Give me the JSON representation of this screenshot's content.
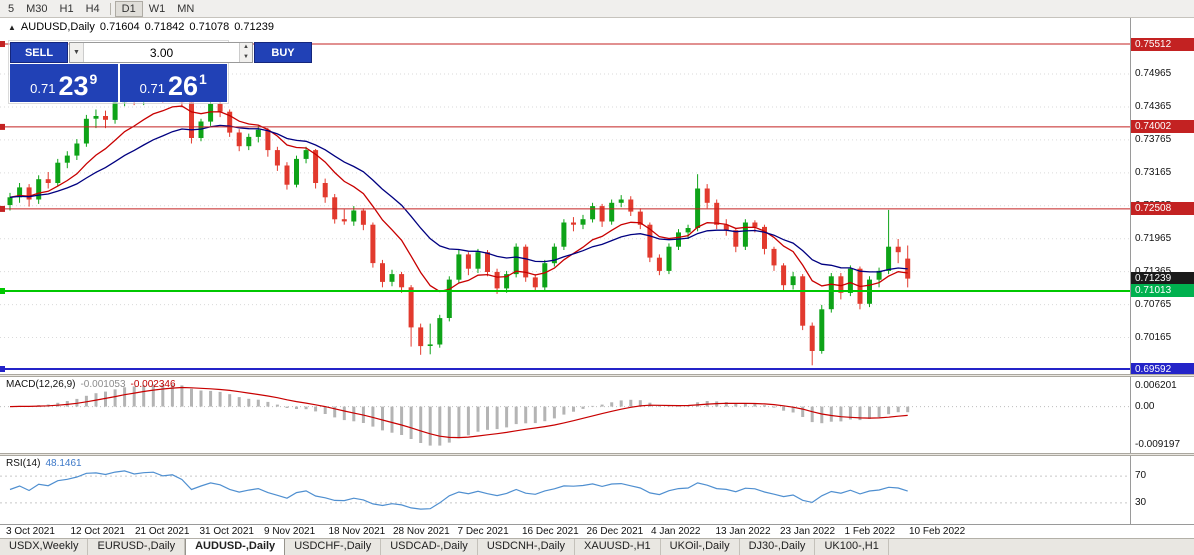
{
  "toolbar": {
    "groups": [
      [
        "5",
        "M30",
        "H1",
        "H4"
      ],
      [
        "D1",
        "W1",
        "MN"
      ]
    ],
    "active": "D1"
  },
  "icons": {
    "collapse": "▲",
    "dropdown": "▼",
    "spin_up": "▲",
    "spin_down": "▼"
  },
  "quote": {
    "symbol": "AUDUSD,Daily",
    "open": "0.71604",
    "high": "0.71842",
    "low": "0.71078",
    "close": "0.71239"
  },
  "trade_panel": {
    "sell_label": "SELL",
    "buy_label": "BUY",
    "volume": "3.00",
    "sell_price": {
      "prefix": "0.71",
      "big": "23",
      "sup": "9"
    },
    "buy_price": {
      "prefix": "0.71",
      "big": "26",
      "sup": "1"
    }
  },
  "price_scale": {
    "labels": [
      "0.74965",
      "0.74365",
      "0.73765",
      "0.73165",
      "0.72565",
      "0.71965",
      "0.71365",
      "0.70765",
      "0.70165"
    ],
    "badges": [
      {
        "price": 0.75512,
        "text": "0.75512",
        "bg": "#c32222"
      },
      {
        "price": 0.74002,
        "text": "0.74002",
        "bg": "#c32222"
      },
      {
        "price": 0.72508,
        "text": "0.72508",
        "bg": "#c32222"
      },
      {
        "price": 0.71239,
        "text": "0.71239",
        "bg": "#1a1a1a"
      },
      {
        "price": 0.71013,
        "text": "0.71013",
        "bg": "#00b14f"
      },
      {
        "price": 0.69592,
        "text": "0.69592",
        "bg": "#2424c8"
      }
    ]
  },
  "macd_panel": {
    "label": "MACD(12,26,9)",
    "value_main": "-0.001053",
    "value_signal": "-0.002346",
    "scale": [
      "0.006201",
      "0.00",
      "-0.009197"
    ]
  },
  "rsi_panel": {
    "label": "RSI(14)",
    "value": "48.1461",
    "levels": [
      "70",
      "30"
    ]
  },
  "date_axis": {
    "labels": [
      "3 Oct 2021",
      "12 Oct 2021",
      "21 Oct 2021",
      "31 Oct 2021",
      "9 Nov 2021",
      "18 Nov 2021",
      "28 Nov 2021",
      "7 Dec 2021",
      "16 Dec 2021",
      "26 Dec 2021",
      "4 Jan 2022",
      "13 Jan 2022",
      "23 Jan 2022",
      "1 Feb 2022",
      "10 Feb 2022"
    ]
  },
  "tabs": {
    "items": [
      "USDX,Weekly",
      "EURUSD-,Daily",
      "AUDUSD-,Daily",
      "USDCHF-,Daily",
      "USDCAD-,Daily",
      "USDCNH-,Daily",
      "XAUUSD-,H1",
      "UKOil-,Daily",
      "DJ30-,Daily",
      "UK100-,H1"
    ],
    "active_index": 2
  },
  "chart_data": {
    "type": "candlestick",
    "symbol": "AUDUSD",
    "timeframe": "Daily",
    "ylim": [
      0.69501,
      0.75986
    ],
    "last_quote": {
      "open": 0.71604,
      "high": 0.71842,
      "low": 0.71078,
      "close": 0.71239
    },
    "hlines": [
      {
        "price": 0.75512,
        "color": "#c32222",
        "width": 1
      },
      {
        "price": 0.74002,
        "color": "#c32222",
        "width": 1
      },
      {
        "price": 0.72508,
        "color": "#c32222",
        "width": 1
      },
      {
        "price": 0.71013,
        "color": "#00c800",
        "width": 2
      },
      {
        "price": 0.69592,
        "color": "#2424c8",
        "width": 2
      }
    ],
    "overlays": [
      {
        "name": "ma-fast",
        "period": 10,
        "color": "#c80000"
      },
      {
        "name": "ma-slow",
        "period": 21,
        "color": "#000080"
      }
    ],
    "indicators": [
      {
        "name": "MACD",
        "params": [
          12,
          26,
          9
        ],
        "values": [
          -0.001053,
          -0.002346
        ],
        "scale_labels": [
          0.006201,
          0.0,
          -0.009197
        ]
      },
      {
        "name": "RSI",
        "params": [
          14
        ],
        "value": 48.1461,
        "levels": [
          70,
          30
        ]
      }
    ],
    "colors": {
      "up": "#0ea318",
      "down": "#e23a2e",
      "grid": "#dadada",
      "macd_hist": "#b4b4b4",
      "macd_signal": "#c80000",
      "rsi": "#4f8fd0"
    },
    "candles": [
      [
        0.7258,
        0.728,
        0.7248,
        0.7272
      ],
      [
        0.7272,
        0.7298,
        0.7262,
        0.729
      ],
      [
        0.729,
        0.7296,
        0.7255,
        0.7268
      ],
      [
        0.7268,
        0.7312,
        0.726,
        0.7305
      ],
      [
        0.7305,
        0.7318,
        0.7288,
        0.7298
      ],
      [
        0.7298,
        0.7342,
        0.7292,
        0.7335
      ],
      [
        0.7335,
        0.7356,
        0.7325,
        0.7348
      ],
      [
        0.7348,
        0.7378,
        0.734,
        0.737
      ],
      [
        0.737,
        0.7422,
        0.7364,
        0.7415
      ],
      [
        0.7415,
        0.7432,
        0.7398,
        0.742
      ],
      [
        0.742,
        0.743,
        0.7398,
        0.7413
      ],
      [
        0.7413,
        0.7452,
        0.7406,
        0.7445
      ],
      [
        0.7445,
        0.747,
        0.7438,
        0.7462
      ],
      [
        0.7462,
        0.7475,
        0.744,
        0.7448
      ],
      [
        0.7448,
        0.7472,
        0.744,
        0.7465
      ],
      [
        0.7465,
        0.7478,
        0.7452,
        0.7472
      ],
      [
        0.7472,
        0.7476,
        0.7444,
        0.7455
      ],
      [
        0.7455,
        0.7474,
        0.7446,
        0.7468
      ],
      [
        0.7468,
        0.7472,
        0.7436,
        0.7445
      ],
      [
        0.7445,
        0.745,
        0.737,
        0.738
      ],
      [
        0.738,
        0.7415,
        0.7374,
        0.741
      ],
      [
        0.741,
        0.7448,
        0.7402,
        0.7442
      ],
      [
        0.7442,
        0.745,
        0.7418,
        0.7428
      ],
      [
        0.7428,
        0.7432,
        0.7382,
        0.739
      ],
      [
        0.739,
        0.7396,
        0.7356,
        0.7365
      ],
      [
        0.7365,
        0.7388,
        0.7358,
        0.7382
      ],
      [
        0.7382,
        0.7402,
        0.7372,
        0.7395
      ],
      [
        0.7395,
        0.7398,
        0.7346,
        0.7358
      ],
      [
        0.7358,
        0.7364,
        0.732,
        0.733
      ],
      [
        0.733,
        0.7336,
        0.7286,
        0.7295
      ],
      [
        0.7295,
        0.7348,
        0.729,
        0.7342
      ],
      [
        0.7342,
        0.7364,
        0.7334,
        0.7358
      ],
      [
        0.7358,
        0.736,
        0.7288,
        0.7298
      ],
      [
        0.7298,
        0.7306,
        0.7262,
        0.7272
      ],
      [
        0.7272,
        0.7278,
        0.7224,
        0.7232
      ],
      [
        0.7232,
        0.725,
        0.7222,
        0.7228
      ],
      [
        0.7228,
        0.7256,
        0.722,
        0.7248
      ],
      [
        0.7248,
        0.7252,
        0.7212,
        0.7222
      ],
      [
        0.7222,
        0.7226,
        0.7144,
        0.7152
      ],
      [
        0.7152,
        0.7158,
        0.7108,
        0.7118
      ],
      [
        0.7118,
        0.714,
        0.711,
        0.7132
      ],
      [
        0.7132,
        0.7136,
        0.7098,
        0.7108
      ],
      [
        0.7108,
        0.7112,
        0.7,
        0.7035
      ],
      [
        0.7035,
        0.7042,
        0.6985,
        0.7001
      ],
      [
        0.7001,
        0.7042,
        0.6986,
        0.7004
      ],
      [
        0.7004,
        0.7058,
        0.6998,
        0.7052
      ],
      [
        0.7052,
        0.7128,
        0.7046,
        0.7122
      ],
      [
        0.7122,
        0.7176,
        0.7116,
        0.7168
      ],
      [
        0.7168,
        0.7172,
        0.713,
        0.7142
      ],
      [
        0.7142,
        0.7178,
        0.7134,
        0.7172
      ],
      [
        0.7172,
        0.7176,
        0.7128,
        0.7136
      ],
      [
        0.7136,
        0.7142,
        0.7096,
        0.7106
      ],
      [
        0.7106,
        0.7138,
        0.7098,
        0.7132
      ],
      [
        0.7132,
        0.7188,
        0.7126,
        0.7182
      ],
      [
        0.7182,
        0.7186,
        0.7118,
        0.7126
      ],
      [
        0.7126,
        0.7132,
        0.71,
        0.7108
      ],
      [
        0.7108,
        0.7158,
        0.7102,
        0.7152
      ],
      [
        0.7152,
        0.7188,
        0.7146,
        0.7182
      ],
      [
        0.7182,
        0.7232,
        0.7176,
        0.7226
      ],
      [
        0.7226,
        0.7236,
        0.721,
        0.7222
      ],
      [
        0.7222,
        0.724,
        0.7214,
        0.7232
      ],
      [
        0.7232,
        0.7262,
        0.7226,
        0.7256
      ],
      [
        0.7256,
        0.726,
        0.7218,
        0.7228
      ],
      [
        0.7228,
        0.7268,
        0.7222,
        0.7262
      ],
      [
        0.7262,
        0.7276,
        0.7254,
        0.7268
      ],
      [
        0.7268,
        0.7274,
        0.7238,
        0.7246
      ],
      [
        0.7246,
        0.7252,
        0.7214,
        0.7222
      ],
      [
        0.7222,
        0.7226,
        0.7154,
        0.7162
      ],
      [
        0.7162,
        0.7168,
        0.713,
        0.7138
      ],
      [
        0.7138,
        0.7188,
        0.7132,
        0.7182
      ],
      [
        0.7182,
        0.7214,
        0.7176,
        0.7208
      ],
      [
        0.7208,
        0.7222,
        0.7196,
        0.7216
      ],
      [
        0.7216,
        0.7314,
        0.721,
        0.7288
      ],
      [
        0.7288,
        0.7296,
        0.7252,
        0.7262
      ],
      [
        0.7262,
        0.7268,
        0.7214,
        0.7222
      ],
      [
        0.7222,
        0.7232,
        0.7202,
        0.7212
      ],
      [
        0.7212,
        0.7216,
        0.7172,
        0.7182
      ],
      [
        0.7182,
        0.7232,
        0.7176,
        0.7226
      ],
      [
        0.7226,
        0.723,
        0.7208,
        0.7218
      ],
      [
        0.7218,
        0.7222,
        0.7168,
        0.7178
      ],
      [
        0.7178,
        0.7182,
        0.7138,
        0.7148
      ],
      [
        0.7148,
        0.7152,
        0.7102,
        0.7112
      ],
      [
        0.7112,
        0.7136,
        0.7104,
        0.7128
      ],
      [
        0.7128,
        0.7132,
        0.703,
        0.7038
      ],
      [
        0.7038,
        0.7044,
        0.6966,
        0.6992
      ],
      [
        0.6992,
        0.7076,
        0.6987,
        0.7068
      ],
      [
        0.7068,
        0.7134,
        0.7062,
        0.7128
      ],
      [
        0.7128,
        0.7134,
        0.7086,
        0.7098
      ],
      [
        0.7098,
        0.7148,
        0.7092,
        0.7142
      ],
      [
        0.7142,
        0.7146,
        0.7068,
        0.7078
      ],
      [
        0.7078,
        0.7128,
        0.7072,
        0.7122
      ],
      [
        0.7122,
        0.7144,
        0.7108,
        0.7138
      ],
      [
        0.7138,
        0.7249,
        0.7132,
        0.7182
      ],
      [
        0.7182,
        0.7196,
        0.7152,
        0.7172
      ],
      [
        0.71604,
        0.71842,
        0.71078,
        0.71239
      ]
    ]
  }
}
